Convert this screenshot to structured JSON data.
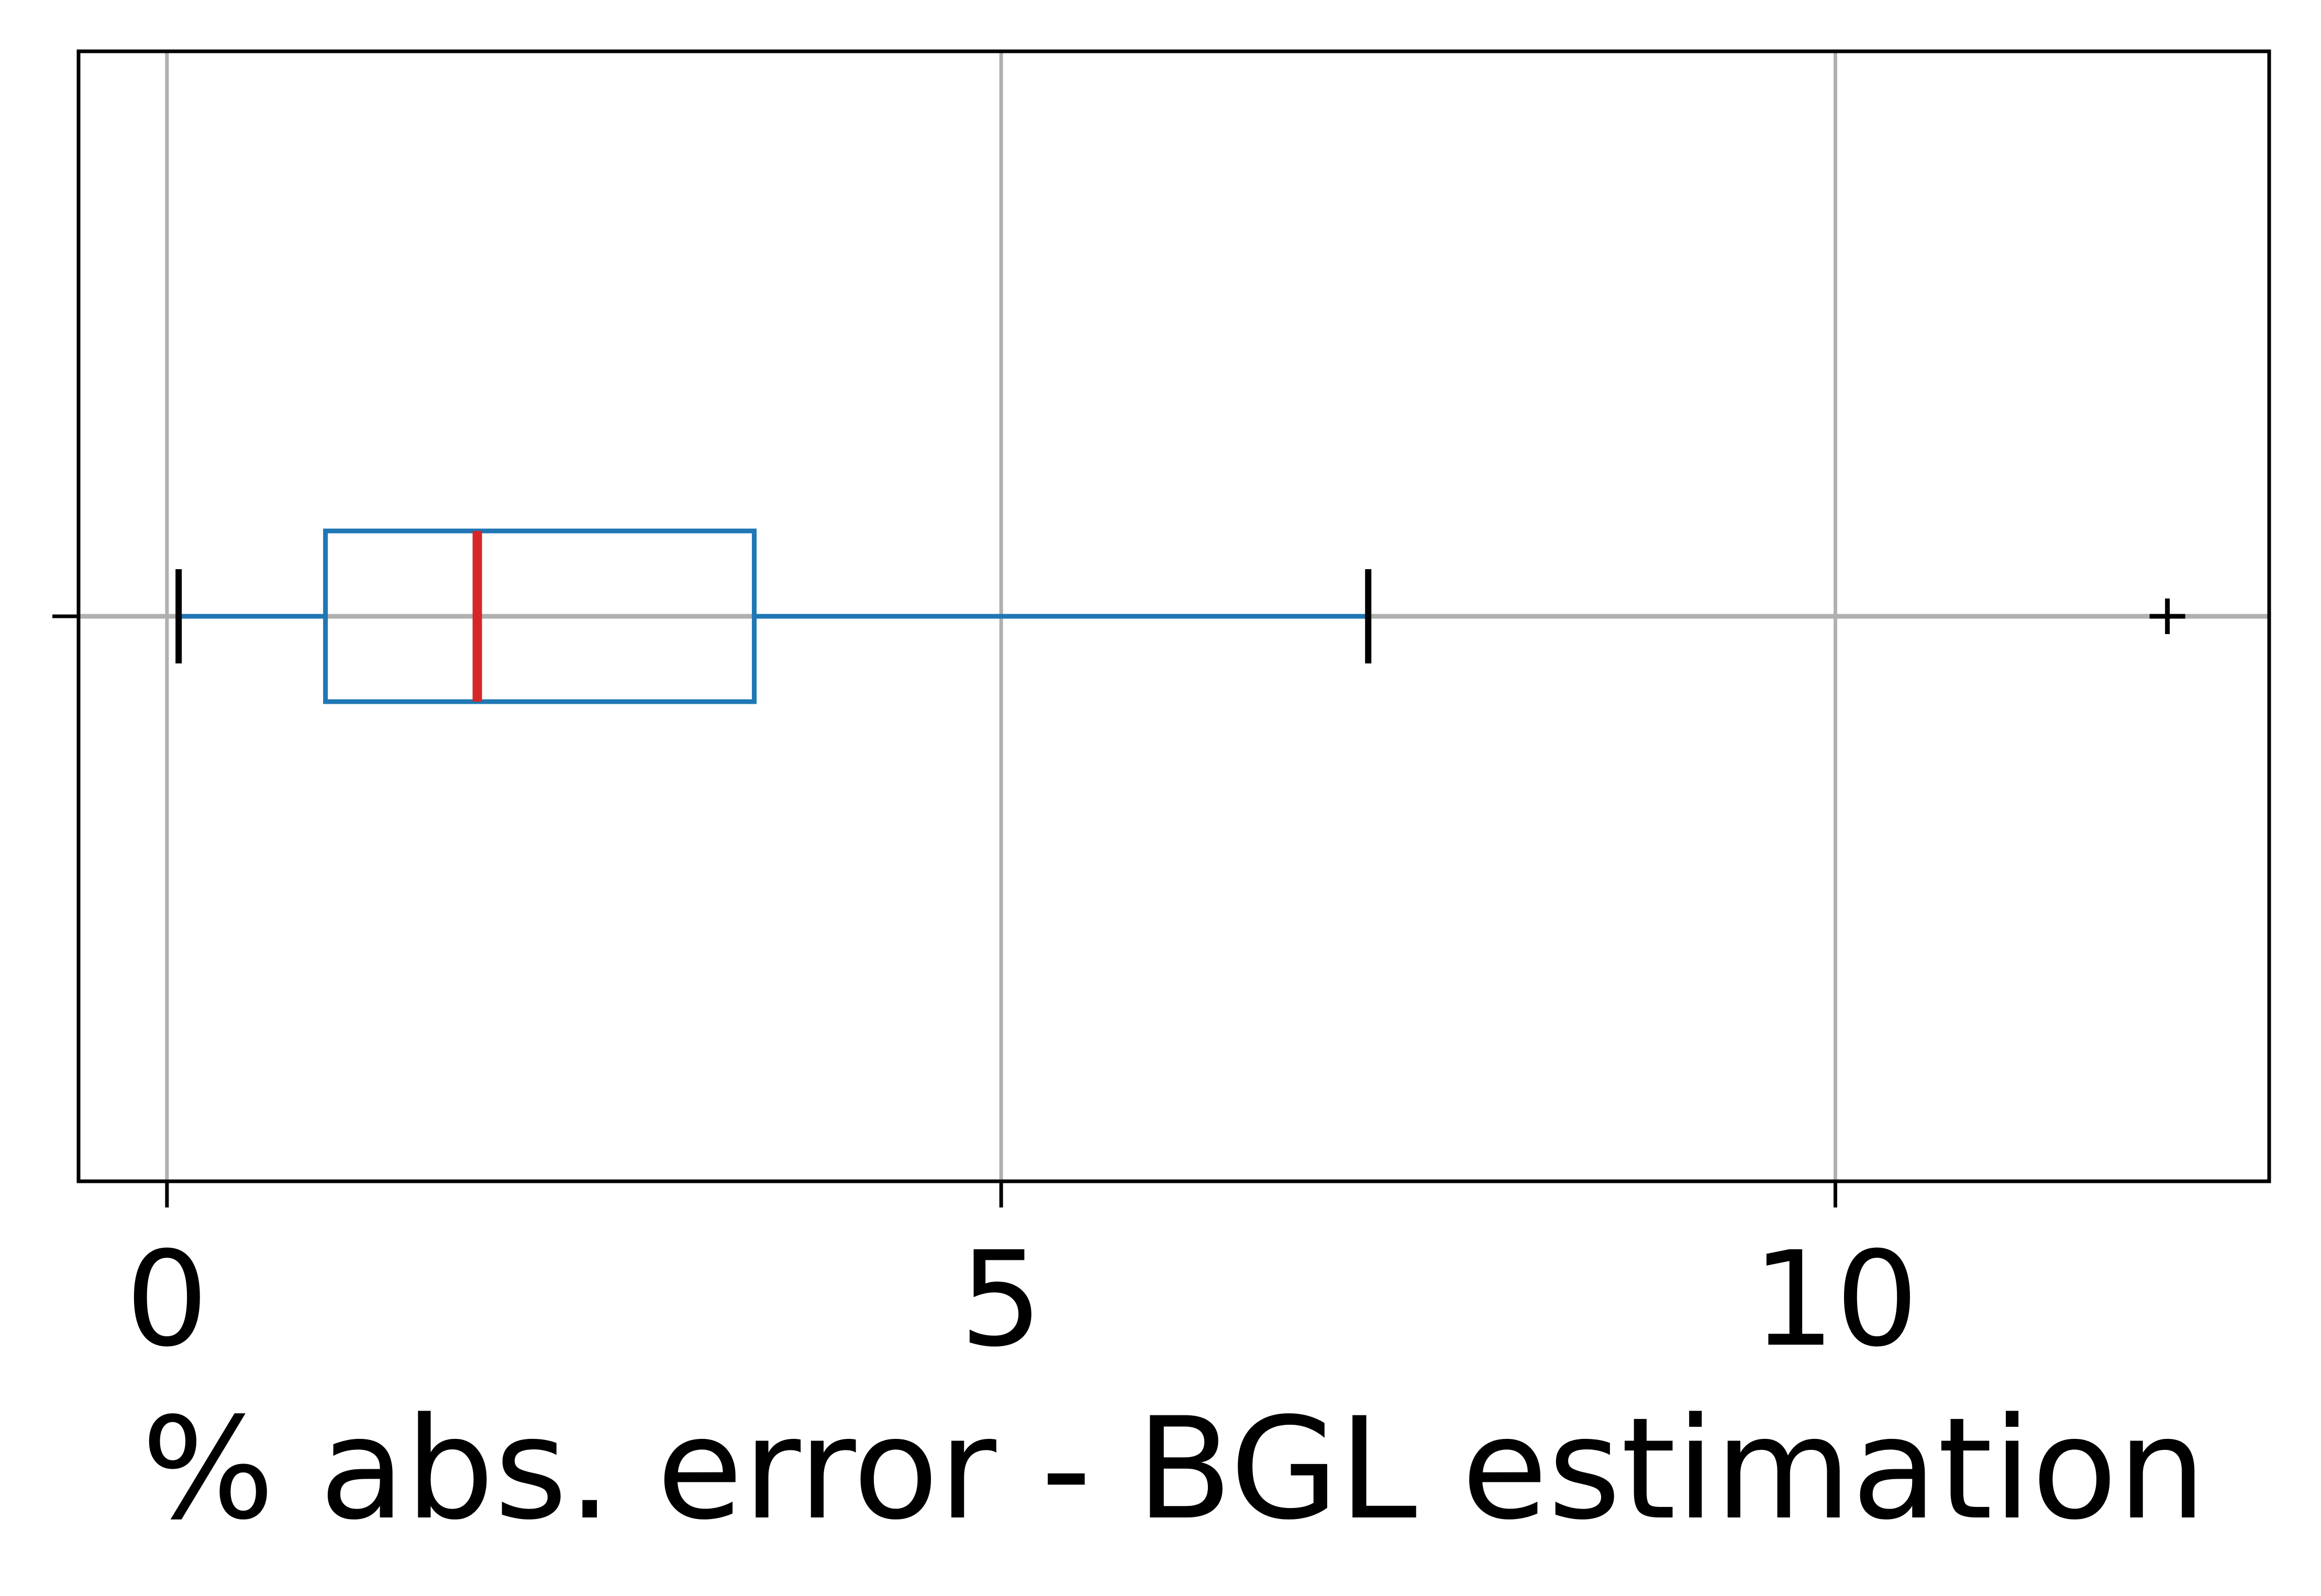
{
  "chart_data": {
    "type": "boxplot",
    "orientation": "horizontal",
    "xlabel": "% abs. error - BGL estimation",
    "ylabel": "",
    "title": "",
    "xlim": [
      -0.53,
      12.6
    ],
    "xticks": [
      0,
      5,
      10
    ],
    "xtick_labels": [
      "0",
      "5",
      "10"
    ],
    "grid": true,
    "box": {
      "whisker_low": 0.07,
      "q1": 0.95,
      "median": 1.86,
      "q3": 3.52,
      "whisker_high": 7.2,
      "outliers": [
        11.99
      ]
    },
    "colors": {
      "box": "#1f77b4",
      "median": "#d62728",
      "whisker_caps": "#000000",
      "outlier": "#000000",
      "grid": "#b0b0b0",
      "frame": "#000000"
    }
  }
}
